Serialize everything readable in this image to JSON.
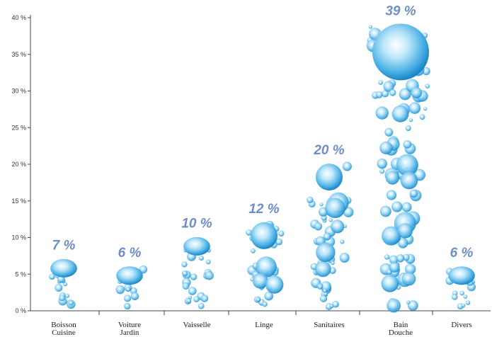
{
  "chart_data": {
    "type": "bar",
    "categories": [
      "Boisson\nCuisine",
      "Voiture\nJardin",
      "Vaisselle",
      "Linge",
      "Sanitaires",
      "Bain\nDouche",
      "Divers"
    ],
    "values": [
      7,
      6,
      10,
      12,
      20,
      39,
      6
    ],
    "value_labels": [
      "7 %",
      "6 %",
      "10 %",
      "12 %",
      "20 %",
      "39 %",
      "6 %"
    ],
    "y_ticks": [
      "0 %",
      "5 %",
      "10 %",
      "15 %",
      "20 %",
      "25 %",
      "30 %",
      "35 %",
      "40 %"
    ],
    "ylim": [
      0,
      40
    ],
    "xlabel": "",
    "ylabel": "",
    "title": "",
    "grid": false,
    "colors": {
      "bubble_dark": "#1f8fd0",
      "bubble_light": "#e8f6ff",
      "label": "#6f8fc4",
      "axis": "#444444"
    }
  }
}
